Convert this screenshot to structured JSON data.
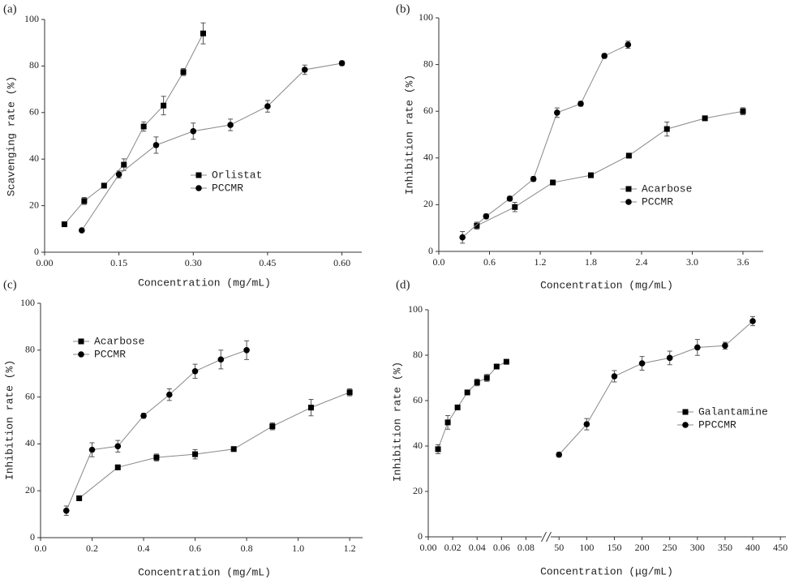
{
  "chart_data": [
    {
      "type": "line",
      "title": "(a)",
      "x_label": "Concentration (mg/mL)",
      "y_label": "Scavenging rate (%)",
      "xlim": [
        0,
        0.64
      ],
      "xticks": [
        {
          "value": 0,
          "label": "0.00"
        },
        0.15,
        {
          "value": 0.3,
          "label": "0.30"
        },
        0.45,
        {
          "value": 0.6,
          "label": "0.60"
        }
      ],
      "ylim": [
        0,
        100
      ],
      "yticks": [
        0,
        20,
        40,
        60,
        80,
        100
      ],
      "series": [
        {
          "name": "Orlistat",
          "marker": "square",
          "color": "#000000",
          "x": [
            0.04,
            0.08,
            0.12,
            0.16,
            0.2,
            0.24,
            0.28,
            0.32
          ],
          "values": [
            12,
            22,
            28.6,
            37.6,
            54,
            63,
            77.4,
            94
          ],
          "errors": [
            1,
            1.5,
            1,
            2.5,
            2,
            4,
            1.5,
            4.5
          ]
        },
        {
          "name": "PCCMR",
          "marker": "circle",
          "color": "#000000",
          "x": [
            0.075,
            0.15,
            0.225,
            0.3,
            0.375,
            0.45,
            0.525,
            0.6
          ],
          "values": [
            9.4,
            33.4,
            46,
            52,
            54.7,
            62.7,
            78.4,
            81.2
          ],
          "errors": [
            0.5,
            1.5,
            3.5,
            3.5,
            2.5,
            2.5,
            2,
            1
          ]
        }
      ]
    },
    {
      "type": "line",
      "title": "(b)",
      "x_label": "Concentration (mg/mL)",
      "y_label": "Inhibition rate (%)",
      "xlim": [
        0,
        3.84
      ],
      "xticks": [
        {
          "value": 0,
          "label": "0.0"
        },
        0.6,
        1.2,
        1.8,
        2.4,
        {
          "value": 3,
          "label": "3.0"
        },
        3.6
      ],
      "ylim": [
        0,
        100
      ],
      "yticks": [
        0,
        20,
        40,
        60,
        80,
        100
      ],
      "series": [
        {
          "name": "Acarbose",
          "marker": "square",
          "color": "#000000",
          "x": [
            0.45,
            0.9,
            1.35,
            1.8,
            2.25,
            2.7,
            3.15,
            3.6
          ],
          "values": [
            11,
            19,
            29.5,
            32.6,
            41,
            52.4,
            57,
            60
          ],
          "errors": [
            1.5,
            2,
            1,
            1,
            1,
            3,
            1,
            1.5
          ]
        },
        {
          "name": "PCCMR",
          "marker": "circle",
          "color": "#000000",
          "x": [
            0.28,
            0.56,
            0.84,
            1.12,
            1.4,
            1.68,
            1.96,
            2.24
          ],
          "values": [
            6,
            15,
            22.6,
            31,
            59.4,
            63.2,
            83.7,
            88.5
          ],
          "errors": [
            2.5,
            1,
            1,
            1,
            2,
            1,
            1,
            1.5
          ]
        }
      ]
    },
    {
      "type": "line",
      "title": "(c)",
      "x_label": "Concentration (mg/mL)",
      "y_label": "Inhibition rate (%)",
      "xlim": [
        0,
        1.25
      ],
      "xticks": [
        {
          "value": 0,
          "label": "0.0"
        },
        0.2,
        0.4,
        0.6,
        0.8,
        {
          "value": 1,
          "label": "1.0"
        },
        1.2
      ],
      "ylim": [
        0,
        100
      ],
      "yticks": [
        0,
        20,
        40,
        60,
        80,
        100
      ],
      "series": [
        {
          "name": "Acarbose",
          "marker": "square",
          "color": "#000000",
          "x": [
            0.15,
            0.3,
            0.45,
            0.6,
            0.75,
            0.9,
            1.05,
            1.2
          ],
          "values": [
            16.8,
            30,
            34.2,
            35.6,
            37.8,
            47.5,
            55.5,
            62
          ],
          "errors": [
            1,
            1,
            1.5,
            2,
            1,
            1.5,
            3.5,
            1.5
          ]
        },
        {
          "name": "PCCMR",
          "marker": "circle",
          "color": "#000000",
          "x": [
            0.1,
            0.2,
            0.3,
            0.4,
            0.5,
            0.6,
            0.7,
            0.8
          ],
          "values": [
            11.5,
            37.5,
            39,
            52,
            61,
            71,
            76,
            80
          ],
          "errors": [
            2,
            3,
            2.5,
            1,
            2.5,
            3,
            4,
            4
          ]
        }
      ]
    },
    {
      "type": "line",
      "title": "(d)",
      "x_label": "Concentration (μg/mL)",
      "y_label": "Inhibition rate (%)",
      "x_segments": [
        {
          "xlim": [
            0,
            0.093
          ],
          "xticks": [
            {
              "value": 0,
              "label": "0.00"
            },
            0.02,
            0.04,
            0.06,
            0.08
          ]
        },
        {
          "xlim": [
            35,
            460
          ],
          "xticks": [
            50,
            100,
            150,
            200,
            250,
            300,
            350,
            400,
            450
          ]
        }
      ],
      "ylim": [
        0,
        100
      ],
      "yticks": [
        0,
        20,
        40,
        60,
        80,
        100
      ],
      "series": [
        {
          "name": "Galantamine",
          "marker": "square",
          "color": "#000000",
          "x": [
            0.008,
            0.016,
            0.024,
            0.032,
            0.04,
            0.048,
            0.056,
            0.064
          ],
          "values": [
            38.6,
            50.4,
            57,
            63.6,
            68,
            70,
            75,
            77.1
          ],
          "errors": [
            2,
            3,
            1,
            1,
            1.5,
            1.5,
            1,
            1
          ]
        },
        {
          "name": "PPCCMR",
          "marker": "circle",
          "color": "#000000",
          "x": [
            50,
            100,
            150,
            200,
            250,
            300,
            350,
            400
          ],
          "values": [
            36.2,
            49.6,
            70.7,
            76.4,
            78.8,
            83.4,
            84.2,
            95
          ],
          "errors": [
            1,
            2.5,
            2.5,
            3,
            3,
            3.5,
            1.5,
            2
          ]
        }
      ]
    }
  ]
}
